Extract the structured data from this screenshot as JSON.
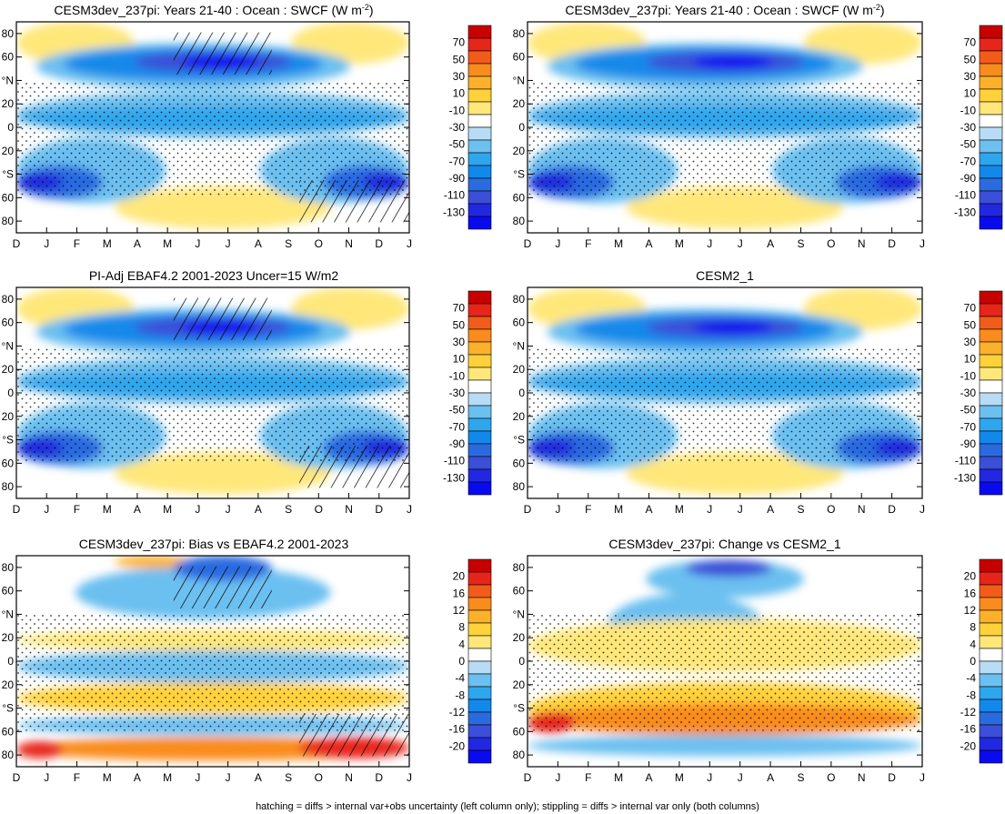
{
  "footer": "hatching = diffs > internal var+obs uncertainty (left column only); stippling = diffs > internal var only (both columns)",
  "chart_data": [
    {
      "type": "heatmap",
      "id": "p1",
      "title_main": "CESM3dev_237pi: Years 21-40 : Ocean : SWCF (W m",
      "title_sup": "-2",
      "title_end": ")",
      "xlabels": [
        "D",
        "J",
        "F",
        "M",
        "A",
        "M",
        "J",
        "J",
        "A",
        "S",
        "O",
        "N",
        "D",
        "J"
      ],
      "ylabels": [
        "80",
        "60",
        "°N",
        "20",
        "0",
        "20",
        "°S",
        "60",
        "80"
      ],
      "yvalues": [
        80,
        60,
        40,
        20,
        0,
        -20,
        -40,
        -60,
        -80
      ],
      "ylim": [
        -90,
        90
      ],
      "colorbar_labels": [
        "70",
        "50",
        "30",
        "10",
        "-10",
        "-30",
        "-50",
        "-70",
        "-90",
        "-110",
        "-130"
      ],
      "colorbar_values": [
        70,
        50,
        30,
        10,
        -10,
        -30,
        -50,
        -70,
        -90,
        -110,
        -130
      ],
      "hatched": true
    },
    {
      "type": "heatmap",
      "id": "p2",
      "title_main": "CESM3dev_237pi: Years 21-40 : Ocean : SWCF (W m",
      "title_sup": "-2",
      "title_end": ")",
      "xlabels": [
        "D",
        "J",
        "F",
        "M",
        "A",
        "M",
        "J",
        "J",
        "A",
        "S",
        "O",
        "N",
        "D",
        "J"
      ],
      "ylabels": [
        "80",
        "60",
        "°N",
        "20",
        "0",
        "20",
        "°S",
        "60",
        "80"
      ],
      "yvalues": [
        80,
        60,
        40,
        20,
        0,
        -20,
        -40,
        -60,
        -80
      ],
      "ylim": [
        -90,
        90
      ],
      "colorbar_labels": [
        "70",
        "50",
        "30",
        "10",
        "-10",
        "-30",
        "-50",
        "-70",
        "-90",
        "-110",
        "-130"
      ],
      "colorbar_values": [
        70,
        50,
        30,
        10,
        -10,
        -30,
        -50,
        -70,
        -90,
        -110,
        -130
      ],
      "hatched": false
    },
    {
      "type": "heatmap",
      "id": "p3",
      "title_main": "PI-Adj EBAF4.2 2001-2023 Uncer=15 W/m2",
      "xlabels": [
        "D",
        "J",
        "F",
        "M",
        "A",
        "M",
        "J",
        "J",
        "A",
        "S",
        "O",
        "N",
        "D",
        "J"
      ],
      "ylabels": [
        "80",
        "60",
        "°N",
        "20",
        "0",
        "20",
        "°S",
        "60",
        "80"
      ],
      "yvalues": [
        80,
        60,
        40,
        20,
        0,
        -20,
        -40,
        -60,
        -80
      ],
      "ylim": [
        -90,
        90
      ],
      "colorbar_labels": [
        "70",
        "50",
        "30",
        "10",
        "-10",
        "-30",
        "-50",
        "-70",
        "-90",
        "-110",
        "-130"
      ],
      "colorbar_values": [
        70,
        50,
        30,
        10,
        -10,
        -30,
        -50,
        -70,
        -90,
        -110,
        -130
      ],
      "hatched": true
    },
    {
      "type": "heatmap",
      "id": "p4",
      "title_main": "CESM2_1",
      "xlabels": [
        "D",
        "J",
        "F",
        "M",
        "A",
        "M",
        "J",
        "J",
        "A",
        "S",
        "O",
        "N",
        "D",
        "J"
      ],
      "ylabels": [
        "80",
        "60",
        "°N",
        "20",
        "0",
        "20",
        "°S",
        "60",
        "80"
      ],
      "yvalues": [
        80,
        60,
        40,
        20,
        0,
        -20,
        -40,
        -60,
        -80
      ],
      "ylim": [
        -90,
        90
      ],
      "colorbar_labels": [
        "70",
        "50",
        "30",
        "10",
        "-10",
        "-30",
        "-50",
        "-70",
        "-90",
        "-110",
        "-130"
      ],
      "colorbar_values": [
        70,
        50,
        30,
        10,
        -10,
        -30,
        -50,
        -70,
        -90,
        -110,
        -130
      ],
      "hatched": false
    },
    {
      "type": "heatmap",
      "id": "p5",
      "title_main": "CESM3dev_237pi: Bias vs EBAF4.2 2001-2023",
      "xlabels": [
        "D",
        "J",
        "F",
        "M",
        "A",
        "M",
        "J",
        "J",
        "A",
        "S",
        "O",
        "N",
        "D",
        "J"
      ],
      "ylabels": [
        "80",
        "60",
        "°N",
        "20",
        "0",
        "20",
        "°S",
        "60",
        "80"
      ],
      "yvalues": [
        80,
        60,
        40,
        20,
        0,
        -20,
        -40,
        -60,
        -80
      ],
      "ylim": [
        -90,
        90
      ],
      "colorbar_labels": [
        "20",
        "16",
        "12",
        "8",
        "4",
        "0",
        "-4",
        "-8",
        "-12",
        "-16",
        "-20"
      ],
      "colorbar_values": [
        20,
        16,
        12,
        8,
        4,
        0,
        -4,
        -8,
        -12,
        -16,
        -20
      ],
      "hatched": true
    },
    {
      "type": "heatmap",
      "id": "p6",
      "title_main": "CESM3dev_237pi: Change vs CESM2_1",
      "xlabels": [
        "D",
        "J",
        "F",
        "M",
        "A",
        "M",
        "J",
        "J",
        "A",
        "S",
        "O",
        "N",
        "D",
        "J"
      ],
      "ylabels": [
        "80",
        "60",
        "°N",
        "20",
        "0",
        "20",
        "°S",
        "60",
        "80"
      ],
      "yvalues": [
        80,
        60,
        40,
        20,
        0,
        -20,
        -40,
        -60,
        -80
      ],
      "ylim": [
        -90,
        90
      ],
      "colorbar_labels": [
        "20",
        "16",
        "12",
        "8",
        "4",
        "0",
        "-4",
        "-8",
        "-12",
        "-16",
        "-20"
      ],
      "colorbar_values": [
        20,
        16,
        12,
        8,
        4,
        0,
        -4,
        -8,
        -12,
        -16,
        -20
      ],
      "hatched": false
    }
  ],
  "colors": {
    "scale": [
      "#c80000",
      "#e8251a",
      "#f25c19",
      "#f98c1e",
      "#fdb12b",
      "#ffd23c",
      "#ffe77a",
      "#ffffff",
      "#b8dcf5",
      "#6cc0f0",
      "#2ea6ee",
      "#1289ea",
      "#2b6be0",
      "#3b4fd8",
      "#2228e0",
      "#0a0af0"
    ]
  }
}
